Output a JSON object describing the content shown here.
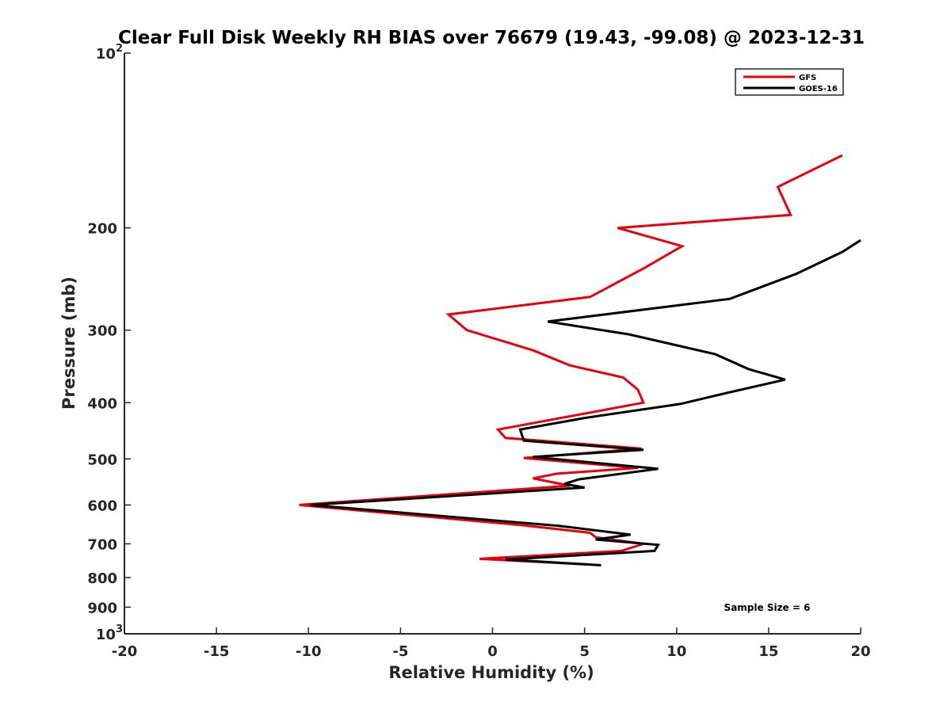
{
  "chart_data": {
    "type": "line",
    "title": "Clear Full Disk Weekly RH BIAS over 76679 (19.43, -99.08) @ 2023-12-31",
    "xlabel": "Relative Humidity (%)",
    "ylabel": "Pressure (mb)",
    "xlim": [
      -20,
      20
    ],
    "ylim": [
      100,
      1000
    ],
    "y_scale": "log",
    "y_reversed": true,
    "grid": false,
    "legend_position": "top-right",
    "x_ticks": [
      "-20",
      "-15",
      "-10",
      "-5",
      "0",
      "5",
      "10",
      "15",
      "20"
    ],
    "y_ticks": [
      {
        "value": 100,
        "label": "10",
        "exponent": "2"
      },
      {
        "value": 200,
        "label": "200"
      },
      {
        "value": 300,
        "label": "300"
      },
      {
        "value": 400,
        "label": "400"
      },
      {
        "value": 500,
        "label": "500"
      },
      {
        "value": 600,
        "label": "600"
      },
      {
        "value": 700,
        "label": "700"
      },
      {
        "value": 800,
        "label": "800"
      },
      {
        "value": 900,
        "label": "900"
      },
      {
        "value": 1000,
        "label": "10",
        "exponent": "3"
      }
    ],
    "series": [
      {
        "name": "GFS",
        "color": "#e8000b",
        "points": [
          [
            19.0,
            150
          ],
          [
            15.5,
            170
          ],
          [
            16.2,
            190
          ],
          [
            6.8,
            200
          ],
          [
            10.3,
            215
          ],
          [
            8.2,
            235
          ],
          [
            5.3,
            263
          ],
          [
            -2.4,
            282
          ],
          [
            -1.4,
            300
          ],
          [
            2.2,
            325
          ],
          [
            4.2,
            345
          ],
          [
            7.1,
            362
          ],
          [
            7.9,
            380
          ],
          [
            8.2,
            400
          ],
          [
            0.3,
            445
          ],
          [
            0.7,
            460
          ],
          [
            8.1,
            480
          ],
          [
            1.7,
            498
          ],
          [
            7.9,
            518
          ],
          [
            3.5,
            530
          ],
          [
            2.2,
            540
          ],
          [
            4.2,
            556
          ],
          [
            -10.5,
            600
          ],
          [
            1.6,
            650
          ],
          [
            5.3,
            670
          ],
          [
            5.6,
            682
          ],
          [
            8.2,
            700
          ],
          [
            7.0,
            720
          ],
          [
            -0.7,
            743
          ],
          [
            5.3,
            760
          ]
        ]
      },
      {
        "name": "GOES-16",
        "color": "#000000",
        "points": [
          [
            20.0,
            210
          ],
          [
            19.0,
            220
          ],
          [
            16.5,
            240
          ],
          [
            12.9,
            265
          ],
          [
            3.0,
            290
          ],
          [
            7.4,
            305
          ],
          [
            12.1,
            330
          ],
          [
            13.9,
            350
          ],
          [
            15.9,
            365
          ],
          [
            12.7,
            385
          ],
          [
            10.2,
            402
          ],
          [
            5.0,
            425
          ],
          [
            1.5,
            445
          ],
          [
            1.7,
            465
          ],
          [
            8.2,
            482
          ],
          [
            2.2,
            496
          ],
          [
            9.0,
            520
          ],
          [
            4.7,
            542
          ],
          [
            3.9,
            552
          ],
          [
            5.0,
            560
          ],
          [
            -9.9,
            600
          ],
          [
            3.6,
            652
          ],
          [
            7.5,
            675
          ],
          [
            5.6,
            688
          ],
          [
            9.0,
            703
          ],
          [
            8.8,
            720
          ],
          [
            0.7,
            745
          ],
          [
            5.9,
            762
          ]
        ]
      }
    ],
    "annotation": "Sample Size = 6"
  }
}
